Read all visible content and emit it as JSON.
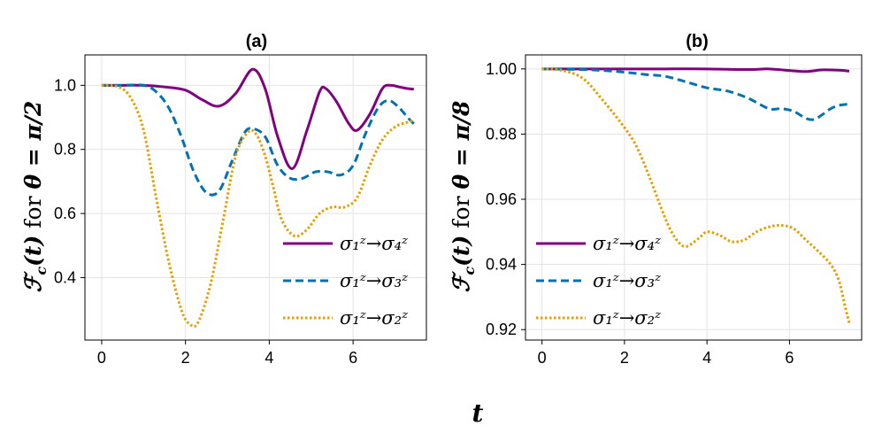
{
  "figure": {
    "xlabel": "t"
  },
  "chart_data": [
    {
      "type": "line",
      "title": "(a)",
      "ylabel_prefix": "ℱ",
      "ylabel_sub": "c",
      "ylabel_arg": "(t)",
      "ylabel_for": " for ",
      "ylabel_theta": "θ = π/2",
      "xlim": [
        -0.4,
        7.75
      ],
      "ylim": [
        0.205,
        1.095
      ],
      "xticks": [
        0,
        2,
        4,
        6
      ],
      "yticks": [
        0.4,
        0.6,
        0.8,
        1.0
      ],
      "ytick_labels": [
        "0.4",
        "0.6",
        "0.8",
        "1.0"
      ],
      "legend_position": "bottom-right",
      "series": [
        {
          "name": "σ₁ᶻ→σ₄ᶻ",
          "color": "#800080",
          "dash": "solid",
          "x": [
            0,
            0.5,
            1.0,
            1.5,
            2.0,
            2.4,
            2.8,
            3.2,
            3.6,
            3.9,
            4.2,
            4.55,
            4.9,
            5.2,
            5.35,
            5.6,
            5.9,
            6.1,
            6.4,
            6.7,
            6.9,
            7.1,
            7.3,
            7.45
          ],
          "y": [
            1.0,
            1.0,
            1.0,
            0.995,
            0.985,
            0.955,
            0.935,
            0.975,
            1.05,
            0.99,
            0.84,
            0.74,
            0.86,
            0.98,
            0.99,
            0.95,
            0.88,
            0.86,
            0.91,
            0.99,
            1.0,
            0.995,
            0.99,
            0.988
          ]
        },
        {
          "name": "σ₁ᶻ→σ₃ᶻ",
          "color": "#0072b2",
          "dash": "dashed",
          "x": [
            0,
            0.5,
            1.0,
            1.3,
            1.6,
            1.9,
            2.2,
            2.5,
            2.8,
            3.1,
            3.4,
            3.6,
            3.9,
            4.2,
            4.5,
            4.8,
            5.1,
            5.4,
            5.7,
            6.0,
            6.3,
            6.6,
            6.85,
            7.1,
            7.3,
            7.45
          ],
          "y": [
            1.0,
            1.0,
            1.0,
            0.98,
            0.93,
            0.84,
            0.73,
            0.665,
            0.67,
            0.76,
            0.85,
            0.865,
            0.84,
            0.75,
            0.71,
            0.71,
            0.73,
            0.73,
            0.72,
            0.75,
            0.85,
            0.93,
            0.953,
            0.93,
            0.9,
            0.88
          ]
        },
        {
          "name": "σ₁ᶻ→σ₂ᶻ",
          "color": "#e69f00",
          "dash": "dotted",
          "x": [
            0,
            0.4,
            0.7,
            1.0,
            1.3,
            1.6,
            1.9,
            2.1,
            2.3,
            2.6,
            2.9,
            3.2,
            3.5,
            3.7,
            3.9,
            4.1,
            4.3,
            4.6,
            4.9,
            5.2,
            5.5,
            5.8,
            6.1,
            6.4,
            6.7,
            7.0,
            7.3,
            7.45
          ],
          "y": [
            1.0,
            0.995,
            0.96,
            0.86,
            0.65,
            0.45,
            0.3,
            0.255,
            0.26,
            0.38,
            0.58,
            0.78,
            0.855,
            0.845,
            0.78,
            0.68,
            0.58,
            0.53,
            0.55,
            0.6,
            0.62,
            0.62,
            0.65,
            0.75,
            0.83,
            0.87,
            0.885,
            0.89
          ]
        }
      ]
    },
    {
      "type": "line",
      "title": "(b)",
      "ylabel_prefix": "ℱ",
      "ylabel_sub": "c",
      "ylabel_arg": "(t)",
      "ylabel_for": " for ",
      "ylabel_theta": "θ = π/8",
      "xlim": [
        -0.4,
        7.75
      ],
      "ylim": [
        0.9168,
        1.0043
      ],
      "xticks": [
        0,
        2,
        4,
        6
      ],
      "yticks": [
        0.92,
        0.94,
        0.96,
        0.98,
        1.0
      ],
      "ytick_labels": [
        "0.92",
        "0.94",
        "0.96",
        "0.98",
        "1.00"
      ],
      "legend_position": "bottom-left",
      "series": [
        {
          "name": "σ₁ᶻ→σ₄ᶻ",
          "color": "#800080",
          "dash": "solid",
          "x": [
            0,
            1,
            2,
            3,
            4,
            5,
            5.5,
            6.0,
            6.4,
            6.8,
            7.2,
            7.45
          ],
          "y": [
            1.0,
            1.0,
            1.0,
            1.0,
            1.0,
            0.9998,
            1.0,
            0.9995,
            0.9992,
            0.9997,
            0.9996,
            0.9993
          ]
        },
        {
          "name": "σ₁ᶻ→σ₃ᶻ",
          "color": "#0072b2",
          "dash": "dashed",
          "x": [
            0,
            1.0,
            1.5,
            2.0,
            2.5,
            3.0,
            3.5,
            4.0,
            4.5,
            5.0,
            5.5,
            5.8,
            6.1,
            6.4,
            6.6,
            6.8,
            7.0,
            7.2,
            7.45
          ],
          "y": [
            1.0,
            0.9998,
            0.9995,
            0.999,
            0.9983,
            0.9977,
            0.996,
            0.9942,
            0.9932,
            0.991,
            0.9878,
            0.9878,
            0.987,
            0.9848,
            0.9845,
            0.986,
            0.9878,
            0.9888,
            0.9892
          ]
        },
        {
          "name": "σ₁ᶻ→σ₂ᶻ",
          "color": "#e69f00",
          "dash": "dotted",
          "x": [
            0,
            0.5,
            1.0,
            1.5,
            2.0,
            2.3,
            2.6,
            2.9,
            3.1,
            3.3,
            3.5,
            3.8,
            4.0,
            4.3,
            4.6,
            4.9,
            5.2,
            5.5,
            5.8,
            6.1,
            6.4,
            6.7,
            7.0,
            7.2,
            7.35,
            7.45
          ],
          "y": [
            1.0,
            0.9995,
            0.997,
            0.99,
            0.982,
            0.976,
            0.967,
            0.957,
            0.951,
            0.947,
            0.9455,
            0.948,
            0.95,
            0.949,
            0.947,
            0.9475,
            0.95,
            0.9515,
            0.952,
            0.951,
            0.9475,
            0.944,
            0.94,
            0.935,
            0.927,
            0.922
          ]
        }
      ]
    }
  ]
}
